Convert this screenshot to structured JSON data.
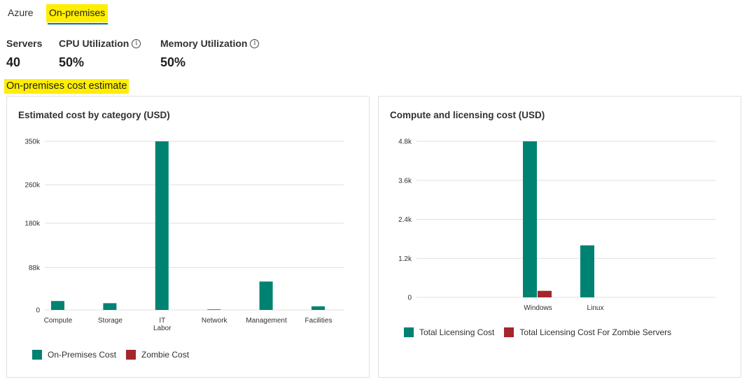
{
  "tabs": [
    {
      "label": "Azure"
    },
    {
      "label": "On-premises"
    }
  ],
  "metrics": {
    "servers": {
      "label": "Servers",
      "value": "40"
    },
    "cpu": {
      "label": "CPU Utilization",
      "value": "50%"
    },
    "memory": {
      "label": "Memory Utilization",
      "value": "50%"
    }
  },
  "section_title": "On-premises cost estimate",
  "colors": {
    "teal": "#008272",
    "red": "#a4262c",
    "highlight": "#ffee00",
    "accent": "#0f6cbd"
  },
  "chart_data": [
    {
      "type": "bar",
      "title": "Estimated cost by category (USD)",
      "categories": [
        "Compute",
        "Storage",
        "IT Labor",
        "Network",
        "Management",
        "Facilities"
      ],
      "category_lines": [
        [
          "Compute"
        ],
        [
          "Storage"
        ],
        [
          "IT",
          "Labor"
        ],
        [
          "Network"
        ],
        [
          "Management"
        ],
        [
          "Facilities"
        ]
      ],
      "series": [
        {
          "name": "On-Premises Cost",
          "color": "#008272",
          "values": [
            18500,
            14000,
            350000,
            1200,
            59000,
            7500
          ]
        },
        {
          "name": "Zombie Cost",
          "color": "#a4262c",
          "values": [
            0,
            0,
            0,
            0,
            0,
            0
          ]
        }
      ],
      "yticks": [
        0,
        88000,
        180000,
        260000,
        350000
      ],
      "ytick_labels": [
        "0",
        "88k",
        "180k",
        "260k",
        "350k"
      ],
      "ylim": [
        0,
        350000
      ],
      "grid": true,
      "legend": "bottom-left"
    },
    {
      "type": "bar",
      "title": "Compute and licensing cost (USD)",
      "categories": [
        "Windows",
        "Linux"
      ],
      "category_lines": [
        [
          "Windows"
        ],
        [
          "Linux"
        ]
      ],
      "series": [
        {
          "name": "Total Licensing Cost",
          "color": "#008272",
          "values": [
            4800,
            1600
          ]
        },
        {
          "name": "Total Licensing Cost For Zombie Servers",
          "color": "#a4262c",
          "values": [
            200,
            0
          ]
        }
      ],
      "yticks": [
        0,
        1200,
        2400,
        3600,
        4800
      ],
      "ytick_labels": [
        "0",
        "1.2k",
        "2.4k",
        "3.6k",
        "4.8k"
      ],
      "ylim": [
        0,
        4800
      ],
      "grid": true,
      "legend": "bottom-left"
    }
  ]
}
